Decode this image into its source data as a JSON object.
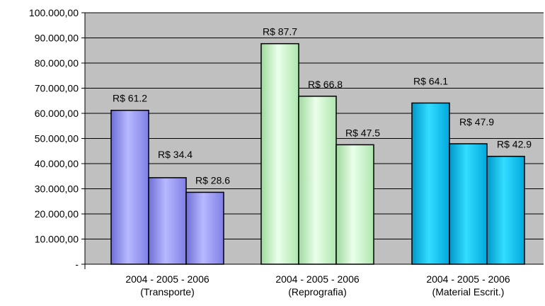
{
  "chart_data": {
    "type": "bar",
    "ylim": [
      0,
      100000
    ],
    "ytick_labels": [
      "-",
      "10.000,00",
      "20.000,00",
      "30.000,00",
      "40.000,00",
      "50.000,00",
      "60.000,00",
      "70.000,00",
      "80.000,00",
      "90.000,00",
      "100.000,00"
    ],
    "grid": true,
    "plot_background": "#c0c0c0",
    "groups": [
      {
        "name": "Transporte",
        "label_line1": "2004 -  2005 -  2006",
        "label_line2": "(Transporte)",
        "color": "#9999ff",
        "bars": [
          {
            "year": "2004",
            "value": 61200,
            "label": "R$ 61.2"
          },
          {
            "year": "2005",
            "value": 34400,
            "label": "R$ 34.4"
          },
          {
            "year": "2006",
            "value": 28600,
            "label": "R$ 28.6"
          }
        ]
      },
      {
        "name": "Reprografia",
        "label_line1": "2004 -  2005 -  2006",
        "label_line2": "(Reprografia)",
        "color": "#ccffcc",
        "bars": [
          {
            "year": "2004",
            "value": 87700,
            "label": "R$ 87.7"
          },
          {
            "year": "2005",
            "value": 66800,
            "label": "R$ 66.8"
          },
          {
            "year": "2006",
            "value": 47500,
            "label": "R$ 47.5"
          }
        ]
      },
      {
        "name": "Material Escrit.",
        "label_line1": "2004 -  2005 -  2006",
        "label_line2": "(Material Escrit.)",
        "color": "#00ccff",
        "bars": [
          {
            "year": "2004",
            "value": 64100,
            "label": "R$ 64.1"
          },
          {
            "year": "2005",
            "value": 47900,
            "label": "R$ 47.9"
          },
          {
            "year": "2006",
            "value": 42900,
            "label": "R$ 42.9"
          }
        ]
      }
    ]
  }
}
